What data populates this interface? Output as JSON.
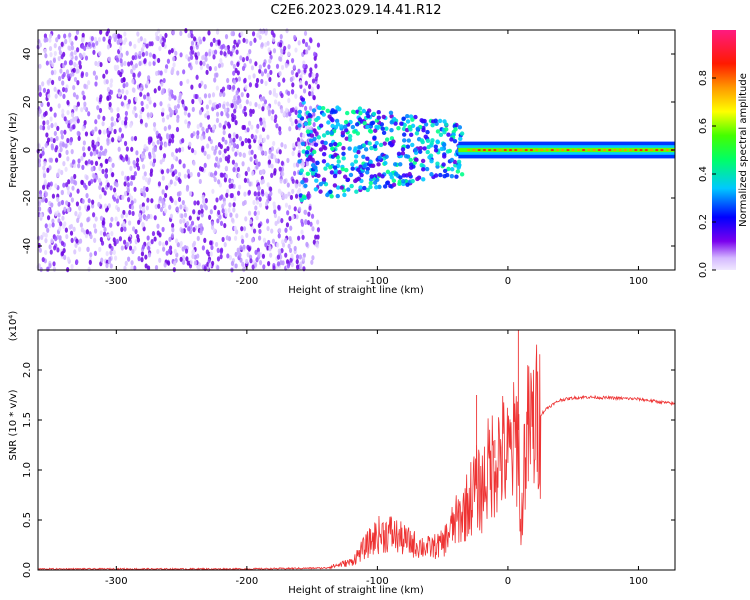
{
  "title": "C2E6.2023.029.14.41.R12",
  "chart_data": [
    {
      "type": "heatmap",
      "xlabel": "Height of straight line (km)",
      "ylabel": "Frequency (Hz)",
      "xlim": [
        -360,
        128
      ],
      "ylim": [
        -50,
        50
      ],
      "xticks": [
        -300,
        -200,
        -100,
        0,
        100
      ],
      "yticks": [
        -40,
        -20,
        0,
        20,
        40
      ],
      "colorbar": {
        "label": "Normalized spectral amplitude",
        "range": [
          0,
          1
        ],
        "ticks": [
          0.0,
          0.2,
          0.4,
          0.6,
          0.8
        ],
        "colormap": "rainbow: white-violet to purple, blue, cyan, green, yellow, orange, red, magenta"
      },
      "features": [
        {
          "x_range": [
            -360,
            -140
          ],
          "freq_range": [
            -50,
            50
          ],
          "amplitude": "low (0.0-0.2)",
          "pattern": "broadband speckle noise"
        },
        {
          "x_range": [
            -150,
            -35
          ],
          "freq_range": [
            -20,
            15
          ],
          "amplitude": "medium (0.2-0.5)",
          "pattern": "cluster narrowing toward 0 Hz"
        },
        {
          "x_range": [
            -35,
            128
          ],
          "freq_range": [
            -3,
            3
          ],
          "amplitude": "high (0.6-1.0)",
          "pattern": "narrow band centred at 0 Hz"
        }
      ]
    },
    {
      "type": "line",
      "xlabel": "Height of straight line (km)",
      "ylabel": "SNR (10 * v/v)",
      "yscale_label": "(x10⁴)",
      "xlim": [
        -360,
        128
      ],
      "ylim": [
        0,
        2.4
      ],
      "xticks": [
        -300,
        -200,
        -100,
        0,
        100
      ],
      "yticks": [
        0.0,
        0.5,
        1.0,
        1.5,
        2.0
      ],
      "color": "#ee3333",
      "series": [
        {
          "x": [
            -360,
            -300,
            -200,
            -140,
            -120,
            -110,
            -100,
            -90,
            -80,
            -70,
            -60,
            -50,
            -45,
            -40,
            -35,
            -30,
            -25,
            -20,
            -18,
            -15,
            -10,
            -5,
            0,
            5,
            8,
            10,
            12,
            15,
            20,
            25,
            30,
            40,
            50,
            60,
            80,
            100,
            128
          ],
          "y": [
            0.01,
            0.01,
            0.01,
            0.02,
            0.08,
            0.22,
            0.35,
            0.37,
            0.3,
            0.25,
            0.22,
            0.26,
            0.38,
            0.48,
            0.55,
            0.68,
            0.82,
            0.78,
            0.9,
            1.0,
            1.12,
            1.18,
            1.1,
            1.25,
            1.4,
            0.22,
            1.05,
            1.35,
            1.45,
            1.55,
            1.62,
            1.7,
            1.72,
            1.73,
            1.72,
            1.71,
            1.66
          ]
        }
      ],
      "spikes": [
        {
          "x": 8,
          "y": 2.4
        },
        {
          "x": -24,
          "y": 1.75
        },
        {
          "x": -10,
          "y": 1.3
        }
      ]
    }
  ]
}
